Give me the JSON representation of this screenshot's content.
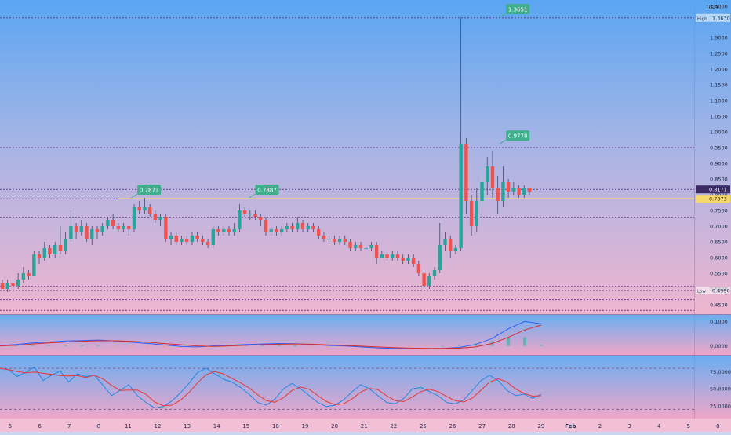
{
  "currency": "USD",
  "colors": {
    "up": "#26a69a",
    "down": "#ef5350",
    "wick": "#3a4a6b",
    "hline": "#6b3f8c",
    "tag": "#3fae8c",
    "avg": "#f5d76e"
  },
  "chart_data": [
    {
      "type": "candlestick",
      "title": "",
      "ylim": [
        0.42,
        1.42
      ],
      "y_ticks": [
        "1.4000",
        "1.3000",
        "1.2500",
        "1.2000",
        "1.1500",
        "1.1000",
        "1.0500",
        "1.0000",
        "0.9500",
        "0.9000",
        "0.8500",
        "0.8000",
        "0.7500",
        "0.7000",
        "0.6500",
        "0.6000",
        "0.5500",
        "0.5000",
        "0.4500"
      ],
      "x_ticks": [
        {
          "label": "5",
          "x": 0
        },
        {
          "label": "6",
          "x": 1
        },
        {
          "label": "7",
          "x": 2
        },
        {
          "label": "8",
          "x": 3
        },
        {
          "label": "11",
          "x": 4
        },
        {
          "label": "12",
          "x": 5
        },
        {
          "label": "13",
          "x": 6
        },
        {
          "label": "14",
          "x": 7
        },
        {
          "label": "15",
          "x": 8
        },
        {
          "label": "18",
          "x": 9
        },
        {
          "label": "19",
          "x": 10
        },
        {
          "label": "20",
          "x": 11
        },
        {
          "label": "21",
          "x": 12
        },
        {
          "label": "22",
          "x": 13
        },
        {
          "label": "25",
          "x": 14
        },
        {
          "label": "26",
          "x": 15
        },
        {
          "label": "27",
          "x": 16
        },
        {
          "label": "28",
          "x": 17
        },
        {
          "label": "29",
          "x": 18
        },
        {
          "label": "Feb",
          "x": 19
        },
        {
          "label": "2",
          "x": 20
        },
        {
          "label": "3",
          "x": 21
        },
        {
          "label": "4",
          "x": 22
        },
        {
          "label": "5",
          "x": 23
        },
        {
          "label": "8",
          "x": 24
        }
      ],
      "horizontal_levels": [
        1.363,
        0.95,
        0.817,
        0.787,
        0.728,
        0.508,
        0.495,
        0.466,
        0.432
      ],
      "markers": [
        {
          "label": "1.3651",
          "x": 16.6,
          "y": 1.365
        },
        {
          "label": "0.9778",
          "x": 16.6,
          "y": 0.962
        },
        {
          "label": "0.7873",
          "x": 4.1,
          "y": 0.79
        },
        {
          "label": "0.7887",
          "x": 8.1,
          "y": 0.79
        }
      ],
      "axis_badges": [
        {
          "label": "High",
          "value": "1.3630",
          "y": 1.363,
          "style": "plain"
        },
        {
          "label": "",
          "value": "0.8171",
          "y": 0.817,
          "style": "dark"
        },
        {
          "label": "",
          "value": "0.7873",
          "y": 0.787,
          "style": "yellow"
        },
        {
          "label": "Low",
          "value": "0.4950",
          "y": 0.495,
          "style": "plain"
        }
      ],
      "candles": [
        [
          0.52,
          0.5,
          0.53,
          0.5
        ],
        [
          0.5,
          0.52,
          0.53,
          0.49
        ],
        [
          0.52,
          0.51,
          0.53,
          0.5
        ],
        [
          0.51,
          0.53,
          0.55,
          0.5
        ],
        [
          0.53,
          0.55,
          0.57,
          0.52
        ],
        [
          0.55,
          0.54,
          0.56,
          0.53
        ],
        [
          0.54,
          0.61,
          0.62,
          0.54
        ],
        [
          0.61,
          0.6,
          0.62,
          0.58
        ],
        [
          0.6,
          0.63,
          0.65,
          0.59
        ],
        [
          0.63,
          0.61,
          0.64,
          0.6
        ],
        [
          0.61,
          0.64,
          0.65,
          0.6
        ],
        [
          0.64,
          0.62,
          0.7,
          0.61
        ],
        [
          0.62,
          0.66,
          0.68,
          0.61
        ],
        [
          0.66,
          0.7,
          0.75,
          0.65
        ],
        [
          0.7,
          0.68,
          0.71,
          0.66
        ],
        [
          0.68,
          0.7,
          0.72,
          0.67
        ],
        [
          0.7,
          0.66,
          0.71,
          0.65
        ],
        [
          0.66,
          0.69,
          0.7,
          0.64
        ],
        [
          0.69,
          0.68,
          0.7,
          0.66
        ],
        [
          0.68,
          0.7,
          0.71,
          0.67
        ],
        [
          0.7,
          0.72,
          0.73,
          0.69
        ],
        [
          0.72,
          0.7,
          0.74,
          0.69
        ],
        [
          0.7,
          0.69,
          0.71,
          0.68
        ],
        [
          0.69,
          0.7,
          0.71,
          0.68
        ],
        [
          0.7,
          0.69,
          0.7,
          0.67
        ],
        [
          0.69,
          0.76,
          0.77,
          0.68
        ],
        [
          0.76,
          0.75,
          0.78,
          0.74
        ],
        [
          0.75,
          0.76,
          0.79,
          0.74
        ],
        [
          0.76,
          0.74,
          0.77,
          0.73
        ],
        [
          0.74,
          0.72,
          0.75,
          0.71
        ],
        [
          0.72,
          0.73,
          0.74,
          0.7
        ],
        [
          0.73,
          0.66,
          0.74,
          0.65
        ],
        [
          0.66,
          0.67,
          0.68,
          0.64
        ],
        [
          0.67,
          0.65,
          0.68,
          0.64
        ],
        [
          0.65,
          0.66,
          0.67,
          0.64
        ],
        [
          0.66,
          0.65,
          0.67,
          0.64
        ],
        [
          0.65,
          0.67,
          0.68,
          0.64
        ],
        [
          0.67,
          0.66,
          0.68,
          0.65
        ],
        [
          0.66,
          0.65,
          0.67,
          0.64
        ],
        [
          0.65,
          0.64,
          0.66,
          0.63
        ],
        [
          0.64,
          0.69,
          0.7,
          0.63
        ],
        [
          0.69,
          0.68,
          0.7,
          0.67
        ],
        [
          0.68,
          0.69,
          0.7,
          0.67
        ],
        [
          0.69,
          0.68,
          0.7,
          0.67
        ],
        [
          0.68,
          0.69,
          0.71,
          0.67
        ],
        [
          0.69,
          0.75,
          0.77,
          0.68
        ],
        [
          0.75,
          0.74,
          0.76,
          0.73
        ],
        [
          0.74,
          0.74,
          0.75,
          0.72
        ],
        [
          0.74,
          0.73,
          0.75,
          0.72
        ],
        [
          0.73,
          0.72,
          0.74,
          0.7
        ],
        [
          0.72,
          0.68,
          0.73,
          0.67
        ],
        [
          0.68,
          0.69,
          0.7,
          0.67
        ],
        [
          0.69,
          0.68,
          0.7,
          0.67
        ],
        [
          0.68,
          0.69,
          0.7,
          0.67
        ],
        [
          0.69,
          0.7,
          0.71,
          0.68
        ],
        [
          0.7,
          0.69,
          0.71,
          0.68
        ],
        [
          0.69,
          0.71,
          0.73,
          0.68
        ],
        [
          0.71,
          0.69,
          0.72,
          0.68
        ],
        [
          0.69,
          0.7,
          0.71,
          0.68
        ],
        [
          0.7,
          0.69,
          0.71,
          0.68
        ],
        [
          0.69,
          0.67,
          0.7,
          0.66
        ],
        [
          0.67,
          0.66,
          0.68,
          0.65
        ],
        [
          0.66,
          0.66,
          0.67,
          0.65
        ],
        [
          0.66,
          0.65,
          0.67,
          0.64
        ],
        [
          0.65,
          0.66,
          0.67,
          0.64
        ],
        [
          0.66,
          0.65,
          0.67,
          0.64
        ],
        [
          0.65,
          0.63,
          0.66,
          0.62
        ],
        [
          0.63,
          0.64,
          0.65,
          0.62
        ],
        [
          0.64,
          0.63,
          0.65,
          0.62
        ],
        [
          0.63,
          0.63,
          0.64,
          0.62
        ],
        [
          0.63,
          0.64,
          0.65,
          0.62
        ],
        [
          0.64,
          0.6,
          0.65,
          0.58
        ],
        [
          0.6,
          0.61,
          0.62,
          0.6
        ],
        [
          0.61,
          0.6,
          0.62,
          0.59
        ],
        [
          0.6,
          0.61,
          0.62,
          0.59
        ],
        [
          0.61,
          0.6,
          0.62,
          0.59
        ],
        [
          0.6,
          0.59,
          0.61,
          0.58
        ],
        [
          0.59,
          0.6,
          0.61,
          0.58
        ],
        [
          0.6,
          0.58,
          0.61,
          0.57
        ],
        [
          0.58,
          0.55,
          0.59,
          0.54
        ],
        [
          0.55,
          0.51,
          0.56,
          0.5
        ],
        [
          0.51,
          0.54,
          0.55,
          0.5
        ],
        [
          0.54,
          0.56,
          0.57,
          0.53
        ],
        [
          0.56,
          0.64,
          0.71,
          0.55
        ],
        [
          0.64,
          0.66,
          0.68,
          0.62
        ],
        [
          0.66,
          0.62,
          0.67,
          0.6
        ],
        [
          0.62,
          0.63,
          0.64,
          0.61
        ],
        [
          0.63,
          0.96,
          1.363,
          0.62
        ],
        [
          0.96,
          0.78,
          0.98,
          0.74
        ],
        [
          0.78,
          0.7,
          0.8,
          0.67
        ],
        [
          0.7,
          0.78,
          0.82,
          0.68
        ],
        [
          0.78,
          0.84,
          0.86,
          0.76
        ],
        [
          0.84,
          0.89,
          0.92,
          0.8
        ],
        [
          0.89,
          0.82,
          0.94,
          0.79
        ],
        [
          0.82,
          0.78,
          0.86,
          0.74
        ],
        [
          0.78,
          0.84,
          0.89,
          0.76
        ],
        [
          0.84,
          0.81,
          0.85,
          0.79
        ],
        [
          0.81,
          0.82,
          0.84,
          0.8
        ],
        [
          0.82,
          0.8,
          0.83,
          0.79
        ],
        [
          0.8,
          0.82,
          0.83,
          0.79
        ],
        [
          0.82,
          0.81,
          0.82,
          0.8
        ]
      ]
    },
    {
      "type": "macd",
      "title": "",
      "y_ticks": [
        "0.1000",
        "0.0000"
      ],
      "ylim": [
        -0.03,
        0.12
      ]
    },
    {
      "type": "stochastic",
      "title": "",
      "y_ticks": [
        "75.0000",
        "50.0000",
        "25.0000"
      ],
      "ylim": [
        10,
        95
      ]
    }
  ]
}
